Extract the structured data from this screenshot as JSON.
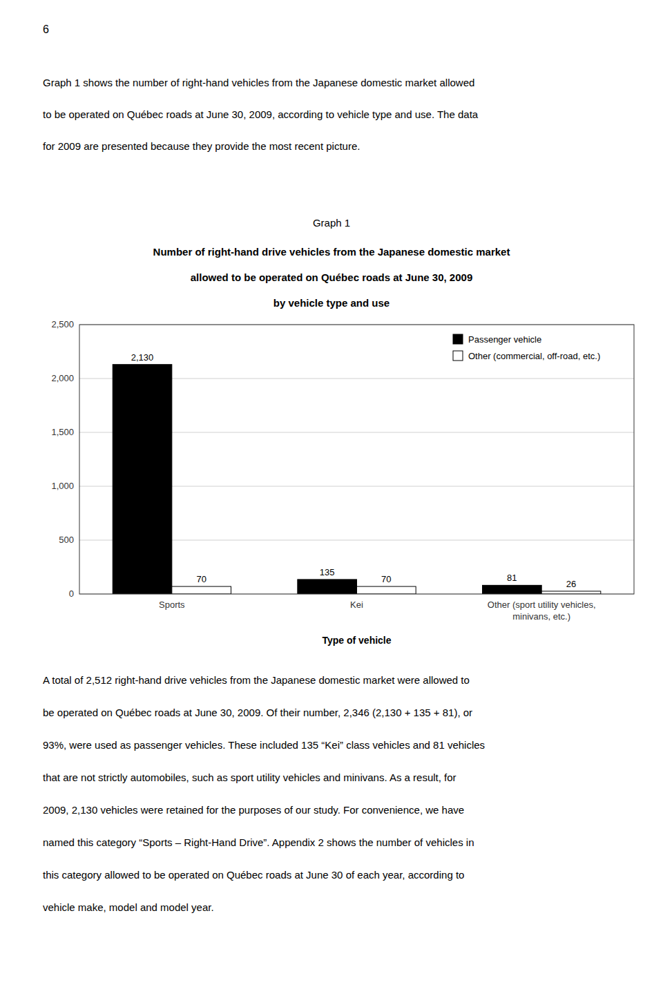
{
  "page_number": "6",
  "intro_text_lines": [
    "Graph 1 shows the number of right-hand vehicles from the Japanese domestic market allowed",
    "to be operated on Québec roads at June 30, 2009, according to vehicle type and use. The data",
    "for 2009 are presented because they provide the most recent picture."
  ],
  "chart_data": {
    "type": "bar",
    "title": "Graph 1",
    "subtitle": [
      "Number of right-hand drive vehicles from the Japanese domestic market",
      "allowed to be operated on Québec roads at June 30, 2009",
      "by vehicle type and use"
    ],
    "categories": [
      "Sports",
      "Kei",
      "Other (sport utility vehicles,\nminivans, etc.)"
    ],
    "series": [
      {
        "name": "Passenger vehicle",
        "color": "#000000",
        "values": [
          2130,
          135,
          81
        ],
        "value_labels": [
          "2,130",
          "135",
          "81"
        ]
      },
      {
        "name": "Other (commercial, off-road, etc.)",
        "color": "#ffffff",
        "values": [
          70,
          70,
          26
        ]
      }
    ],
    "xlabel": "Type of vehicle",
    "ylim": [
      0,
      2500
    ],
    "yticks": [
      0,
      500,
      {
        "value": 1000,
        "label": "1,000"
      },
      {
        "value": 1500,
        "label": "1,500"
      },
      {
        "value": 2000,
        "label": "2,000"
      },
      {
        "value": 2500,
        "label": "2,500"
      }
    ],
    "grid": true,
    "legend": "upper right",
    "data_labels": true
  },
  "body_text_lines": [
    "A total of 2,512 right-hand drive vehicles from the Japanese domestic market were allowed to",
    "be operated on Québec roads at June 30, 2009. Of their number, 2,346 (2,130 + 135 + 81), or",
    "93%, were used as passenger vehicles. These included 135 “Kei” class vehicles and 81 vehicles",
    "that are not strictly automobiles, such as sport utility vehicles and minivans. As a result, for",
    "2009, 2,130 vehicles were retained for the purposes of our study. For convenience, we have",
    "named this category “Sports – Right-Hand Drive”. Appendix 2 shows the number of vehicles in",
    "this category allowed to be operated on Québec roads at June 30 of each year, according to",
    "vehicle make, model and model year."
  ]
}
